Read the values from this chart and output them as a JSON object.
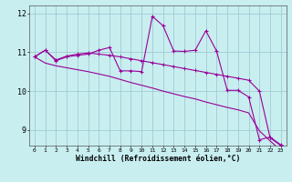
{
  "xlabel": "Windchill (Refroidissement éolien,°C)",
  "background_color": "#c8eef0",
  "grid_color": "#a0ccd4",
  "line_color": "#990099",
  "xlim": [
    -0.5,
    23.5
  ],
  "ylim": [
    8.6,
    12.2
  ],
  "yticks": [
    9,
    10,
    11,
    12
  ],
  "xticks": [
    0,
    1,
    2,
    3,
    4,
    5,
    6,
    7,
    8,
    9,
    10,
    11,
    12,
    13,
    14,
    15,
    16,
    17,
    18,
    19,
    20,
    21,
    22,
    23
  ],
  "x": [
    0,
    1,
    2,
    3,
    4,
    5,
    6,
    7,
    8,
    9,
    10,
    11,
    12,
    13,
    14,
    15,
    16,
    17,
    18,
    19,
    20,
    21,
    22,
    23
  ],
  "line1": [
    10.88,
    11.05,
    10.78,
    10.88,
    10.92,
    10.95,
    11.05,
    11.12,
    10.52,
    10.52,
    10.5,
    11.92,
    11.68,
    11.03,
    11.02,
    11.05,
    11.55,
    11.03,
    10.02,
    10.02,
    9.85,
    8.75,
    8.82,
    8.62
  ],
  "line2": [
    10.88,
    11.05,
    10.8,
    10.9,
    10.95,
    10.98,
    10.95,
    10.92,
    10.88,
    10.83,
    10.78,
    10.73,
    10.68,
    10.63,
    10.58,
    10.53,
    10.48,
    10.43,
    10.38,
    10.33,
    10.28,
    10.0,
    8.8,
    8.6
  ],
  "line3": [
    10.88,
    10.72,
    10.65,
    10.6,
    10.55,
    10.5,
    10.44,
    10.38,
    10.3,
    10.22,
    10.15,
    10.08,
    10.0,
    9.93,
    9.86,
    9.8,
    9.72,
    9.65,
    9.58,
    9.52,
    9.44,
    8.98,
    8.72,
    8.48
  ]
}
